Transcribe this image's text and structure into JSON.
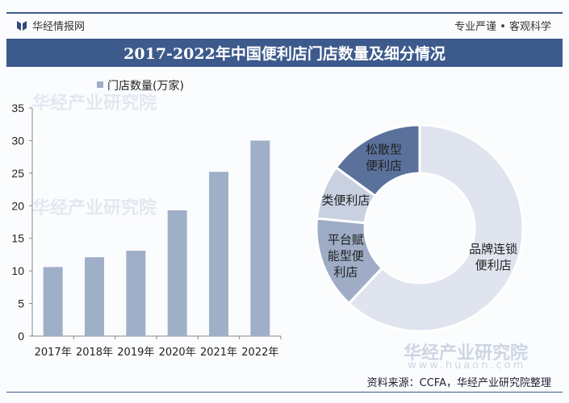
{
  "header": {
    "brand": "华经情报网",
    "slogan": "专业严谨 • 客观科学",
    "title": "2017-2022年中国便利店门店数量及细分情况"
  },
  "watermark": {
    "name": "华经产业研究院",
    "url": "www.huaon.com"
  },
  "source": "资料来源：CCFA，华经产业研究院整理",
  "colors": {
    "header_bar": "#3d5a8c",
    "bar": "#a0afc8"
  },
  "chart_data": [
    {
      "type": "bar",
      "legend": "门店数量(万家)",
      "legend_position": "top",
      "categories": [
        "2017年",
        "2018年",
        "2019年",
        "2020年",
        "2021年",
        "2022年"
      ],
      "values": [
        10.6,
        12.1,
        13.1,
        19.3,
        25.2,
        30.0
      ],
      "ylim": [
        0,
        35
      ],
      "yticks": [
        0,
        5,
        10,
        15,
        20,
        25,
        30,
        35
      ],
      "grid": false
    },
    {
      "type": "pie",
      "donut": true,
      "labels": [
        "品牌连锁便利店",
        "平台赋能型便利店",
        "类便利店",
        "松散型便利店"
      ],
      "label_lines": [
        [
          "品牌连锁",
          "便利店"
        ],
        [
          "平台赋",
          "能型便",
          "利店"
        ],
        [
          "类便利店"
        ],
        [
          "松散型",
          "便利店"
        ]
      ],
      "values": [
        62,
        14.5,
        8.5,
        15
      ],
      "colors": [
        "#dfe4ee",
        "#9eacc6",
        "#c9d1e1",
        "#5a719c"
      ]
    }
  ]
}
